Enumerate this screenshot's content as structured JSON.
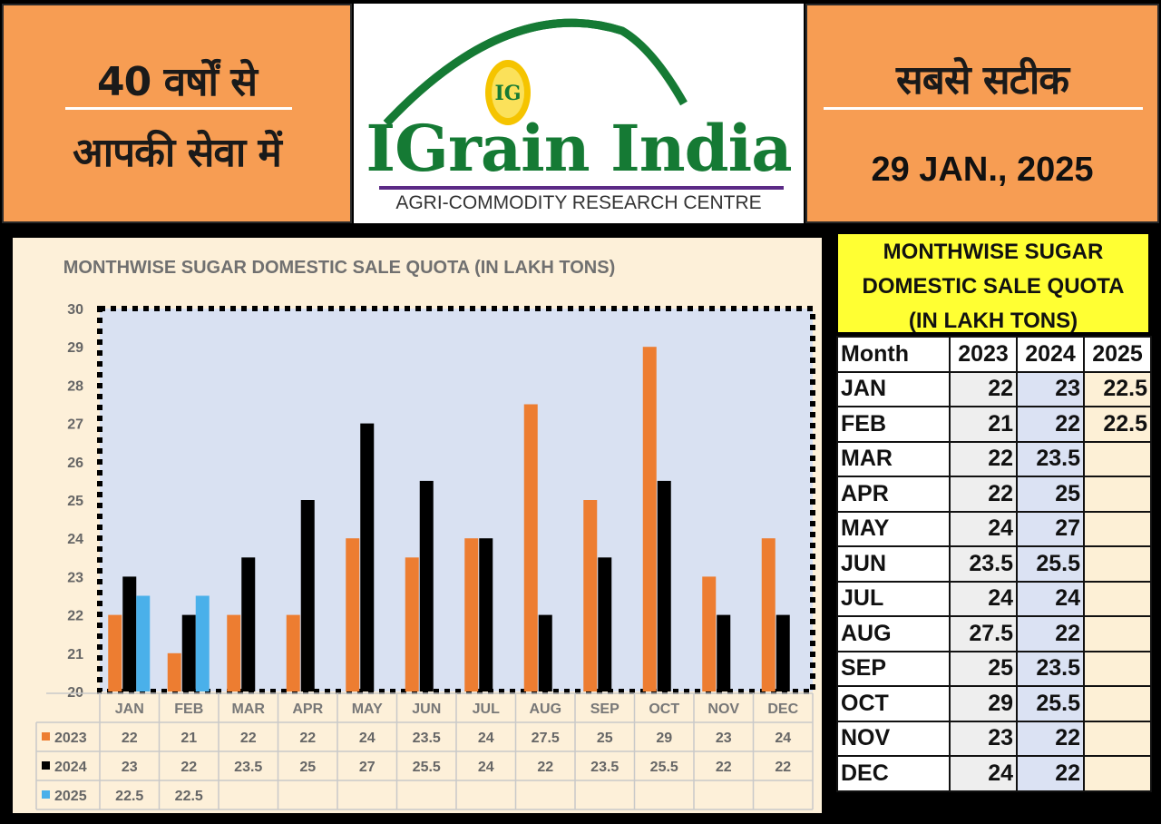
{
  "header": {
    "left_line1": "40 वर्षों से",
    "left_line2": "आपकी सेवा में",
    "brand": "IGrain India",
    "brand_sub": "AGRI-COMMODITY RESEARCH CENTRE",
    "logo_badge": "IG",
    "right_line1": "सबसे सटीक",
    "date": "29 JAN., 2025"
  },
  "colors": {
    "header_bg": "#f79d53",
    "brand_green": "#157a34",
    "s2023": "#ed7d31",
    "s2024": "#000000",
    "s2025": "#4ab0ea",
    "plot_bg": "#d9e1f2",
    "table_title_bg": "#ffff33"
  },
  "chart_data": {
    "type": "bar",
    "title": "MONTHWISE SUGAR DOMESTIC SALE QUOTA (IN LAKH TONS)",
    "categories": [
      "JAN",
      "FEB",
      "MAR",
      "APR",
      "MAY",
      "JUN",
      "JUL",
      "AUG",
      "SEP",
      "OCT",
      "NOV",
      "DEC"
    ],
    "series": [
      {
        "name": "2023",
        "values": [
          22,
          21,
          22,
          22,
          24,
          23.5,
          24,
          27.5,
          25,
          29,
          23,
          24
        ]
      },
      {
        "name": "2024",
        "values": [
          23,
          22,
          23.5,
          25,
          27,
          25.5,
          24,
          22,
          23.5,
          25.5,
          22,
          22
        ]
      },
      {
        "name": "2025",
        "values": [
          22.5,
          22.5,
          null,
          null,
          null,
          null,
          null,
          null,
          null,
          null,
          null,
          null
        ]
      }
    ],
    "ylim": [
      20,
      30
    ],
    "yticks": [
      20,
      21,
      22,
      23,
      24,
      25,
      26,
      27,
      28,
      29,
      30
    ],
    "grid": false,
    "legend": "data-table"
  },
  "table": {
    "title_lines": [
      "MONTHWISE SUGAR",
      "DOMESTIC SALE QUOTA",
      "(IN LAKH TONS)"
    ],
    "headers": [
      "Month",
      "2023",
      "2024",
      "2025"
    ],
    "rows": [
      [
        "JAN",
        "22",
        "23",
        "22.5"
      ],
      [
        "FEB",
        "21",
        "22",
        "22.5"
      ],
      [
        "MAR",
        "22",
        "23.5",
        ""
      ],
      [
        "APR",
        "22",
        "25",
        ""
      ],
      [
        "MAY",
        "24",
        "27",
        ""
      ],
      [
        "JUN",
        "23.5",
        "25.5",
        ""
      ],
      [
        "JUL",
        "24",
        "24",
        ""
      ],
      [
        "AUG",
        "27.5",
        "22",
        ""
      ],
      [
        "SEP",
        "25",
        "23.5",
        ""
      ],
      [
        "OCT",
        "29",
        "25.5",
        ""
      ],
      [
        "NOV",
        "23",
        "22",
        ""
      ],
      [
        "DEC",
        "24",
        "22",
        ""
      ]
    ]
  }
}
